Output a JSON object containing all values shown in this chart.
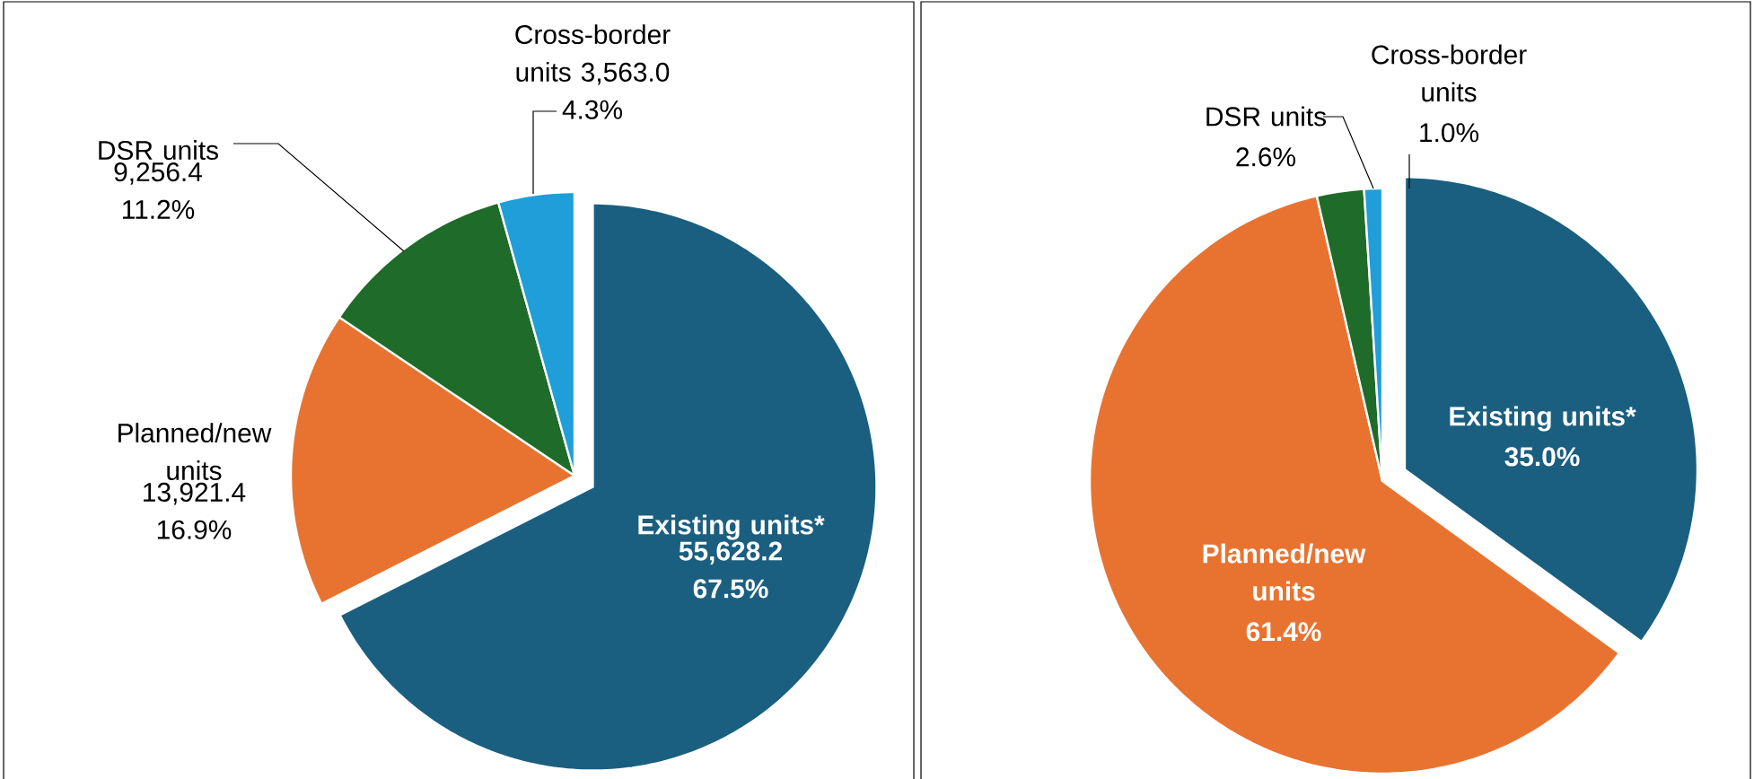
{
  "chart_data": [
    {
      "type": "pie",
      "categories": [
        "Existing units*",
        "Planned/new units",
        "DSR units",
        "Cross-border units"
      ],
      "values": [
        55628.2,
        13921.4,
        9256.4,
        3563.0
      ],
      "colors": [
        "#1a5f80",
        "#e87331",
        "#1e6b2a",
        "#1f9ed9"
      ],
      "value_labels": [
        "55,628.2 67.5%",
        "13,921.4 16.9%",
        "9,256.4 11.2%",
        "3,563.0 4.3%"
      ]
    },
    {
      "type": "pie",
      "categories": [
        "Existing units*",
        "Planned/new units",
        "DSR units",
        "Cross-border units"
      ],
      "values": [
        35.0,
        61.4,
        2.6,
        1.0
      ],
      "colors": [
        "#1a5f80",
        "#e87331",
        "#1e6b2a",
        "#1f9ed9"
      ],
      "value_labels": [
        "35.0%",
        "61.4%",
        "2.6%",
        "1.0%"
      ]
    }
  ]
}
